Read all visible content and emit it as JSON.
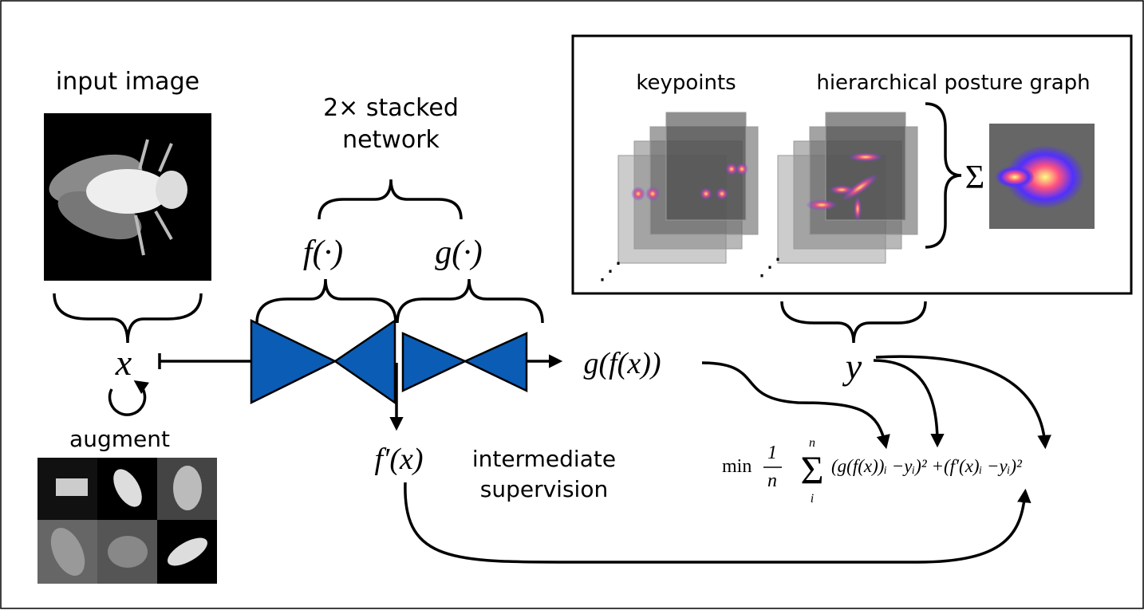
{
  "input_image": {
    "label": "input image"
  },
  "network": {
    "label_lines": [
      "2× stacked",
      "network"
    ],
    "f": "f(·)",
    "g": "g(·)"
  },
  "variables": {
    "x": "x",
    "y": "y",
    "gfx": "g(f(x))",
    "fpx": "f′(x)"
  },
  "augment": {
    "label": "augment"
  },
  "intermediate": {
    "label_lines": [
      "intermediate",
      "supervision"
    ]
  },
  "panel": {
    "keypoints": "keypoints",
    "graph": "hierarchical posture graph",
    "sum": "Σ",
    "ellipsis": "⋰"
  },
  "loss": {
    "min": "min",
    "numerator": "1",
    "denominator": "n",
    "sum": "Σ",
    "upper": "n",
    "lower": "i",
    "terms": "(g(f(x))ᵢ −yᵢ)² +(f′(x)ᵢ −yᵢ)²"
  }
}
